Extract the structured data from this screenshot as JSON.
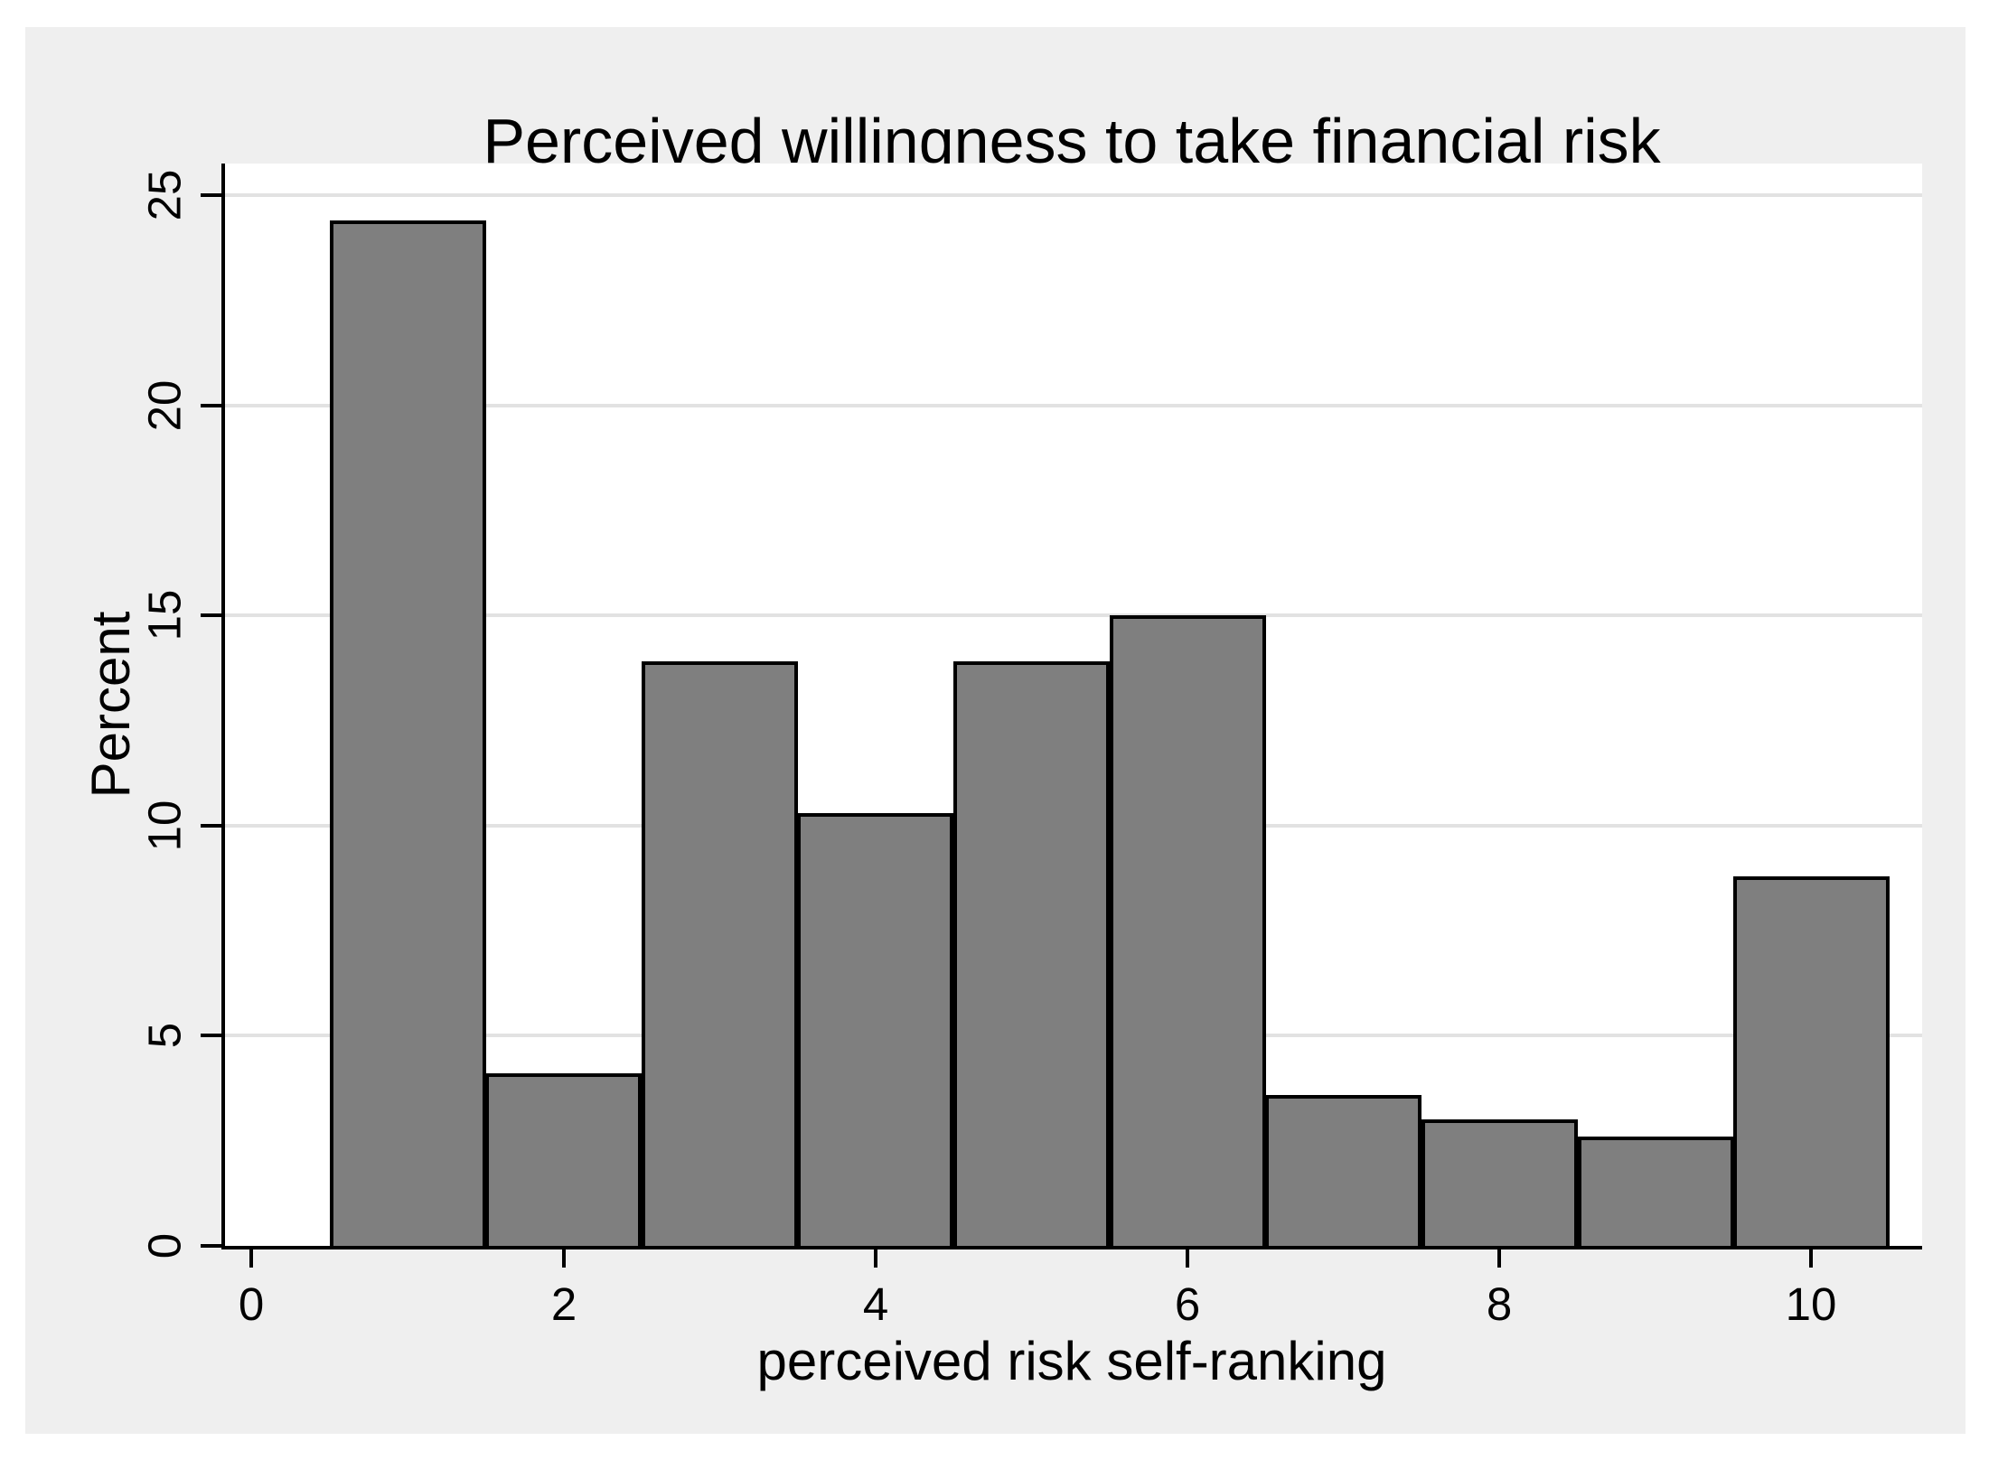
{
  "figure": {
    "background_color": "#efefef",
    "plot_background_color": "#ffffff",
    "axis_line_color": "#000000"
  },
  "chart_data": {
    "type": "bar",
    "title": "Perceived willingness to take financial risk",
    "xlabel": "perceived risk self-ranking",
    "ylabel": "Percent",
    "categories": [
      1,
      2,
      3,
      4,
      5,
      6,
      7,
      8,
      9,
      10
    ],
    "values": [
      24.4,
      4.1,
      13.9,
      10.3,
      13.9,
      15.0,
      3.6,
      3.0,
      2.6,
      8.8
    ],
    "bar_width": 1.0,
    "xticks": [
      0,
      2,
      4,
      6,
      8,
      10
    ],
    "yticks": [
      0,
      5,
      10,
      15,
      20,
      25
    ],
    "xlim": [
      -0.17,
      10.71
    ],
    "ylim": [
      0,
      25.75
    ],
    "grid": true,
    "legend": false,
    "bar_fill_color": "#7f7f7f",
    "bar_border_color": "#000000",
    "gridline_color": "#e2e2e2"
  }
}
